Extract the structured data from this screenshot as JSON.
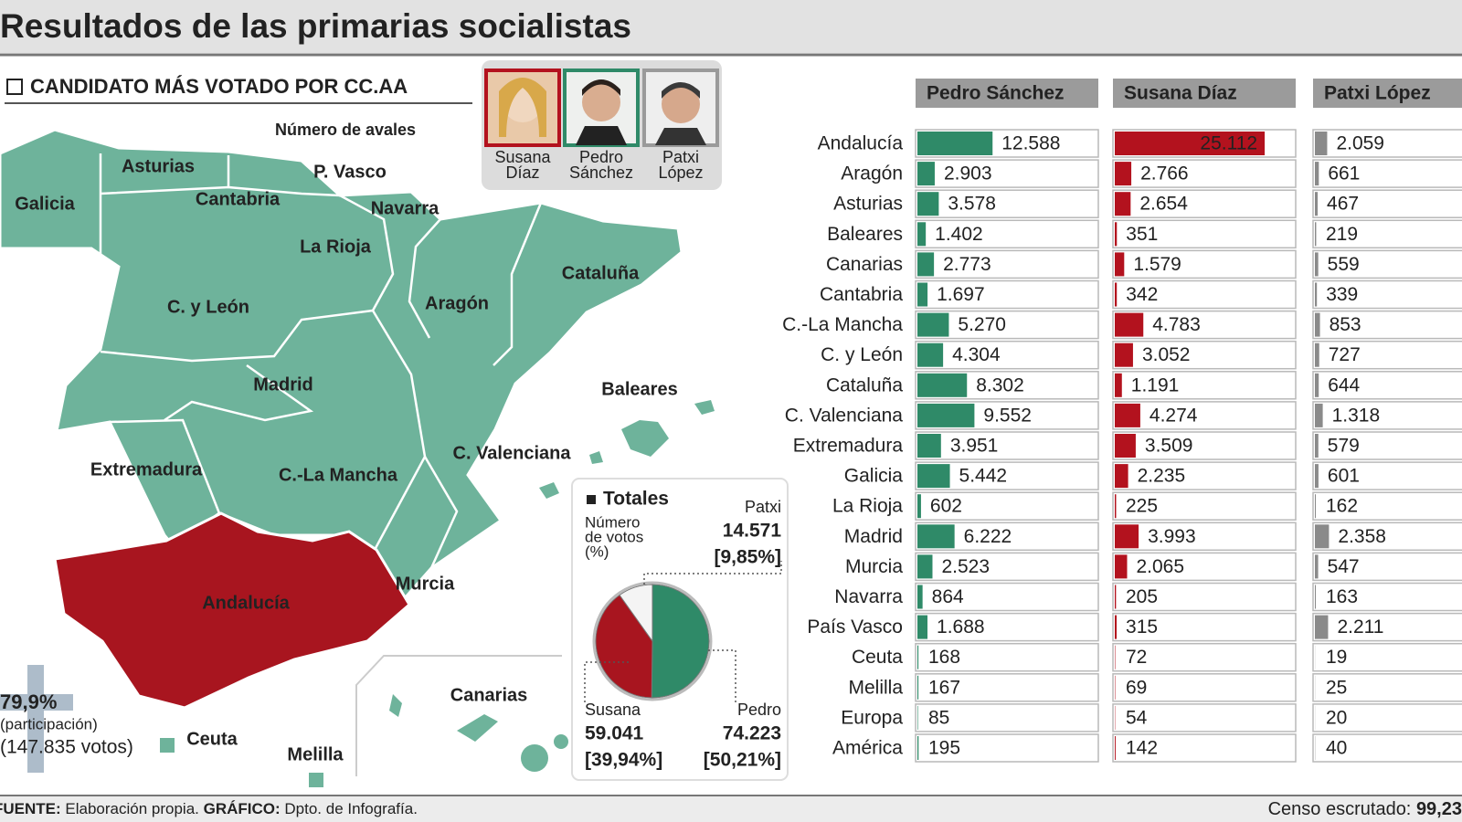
{
  "header": {
    "title": "Resultados de las primarias socialistas"
  },
  "map": {
    "legend_title": "CANDIDATO MÁS VOTADO POR CC.AA",
    "subtitle": "Número de avales",
    "candidates": [
      [
        "Susana",
        "Díaz"
      ],
      [
        "Pedro",
        "Sánchez"
      ],
      [
        "Patxi",
        "López"
      ]
    ],
    "labels": [
      "Asturias",
      "P. Vasco",
      "Galicia",
      "Cantabria",
      "Navarra",
      "La Rioja",
      "Cataluña",
      "Aragón",
      "C. y León",
      "Madrid",
      "Baleares",
      "C. Valenciana",
      "Extremadura",
      "C.-La Mancha",
      "Murcia",
      "Andalucía",
      "Canarias",
      "Ceuta",
      "Melilla"
    ],
    "participation": [
      "79,9%",
      "(participación)",
      "(147.835 votos)"
    ]
  },
  "chart_data": [
    {
      "type": "bar",
      "orientation": "horizontal",
      "categories": [
        "Andalucía",
        "Aragón",
        "Asturias",
        "Baleares",
        "Canarias",
        "Cantabria",
        "C.-La Mancha",
        "C. y León",
        "Cataluña",
        "C. Valenciana",
        "Extremadura",
        "Galicia",
        "La Rioja",
        "Madrid",
        "Murcia",
        "Navarra",
        "País Vasco",
        "Ceuta",
        "Melilla",
        "Europa",
        "América"
      ],
      "xlim": [
        0,
        30000
      ],
      "highlight_color": "#eddccd",
      "series": [
        {
          "name": "Pedro Sánchez",
          "color": "#2f8a68",
          "values": [
            12588,
            2903,
            3578,
            1402,
            2773,
            1697,
            5270,
            4304,
            8302,
            9552,
            3951,
            5442,
            602,
            6222,
            2523,
            864,
            1688,
            168,
            167,
            85,
            195
          ],
          "value_labels": [
            "12.588",
            "2.903",
            "3.578",
            "1.402",
            "2.773",
            "1.697",
            "5.270",
            "4.304",
            "8.302",
            "9.552",
            "3.951",
            "5.442",
            "602",
            "6.222",
            "2.523",
            "864",
            "1.688",
            "168",
            "167",
            "85",
            "195"
          ]
        },
        {
          "name": "Susana Díaz",
          "color": "#b3121e",
          "values": [
            25112,
            2766,
            2654,
            351,
            1579,
            342,
            4783,
            3052,
            1191,
            4274,
            3509,
            2235,
            225,
            3993,
            2065,
            205,
            315,
            72,
            69,
            54,
            142
          ],
          "value_labels": [
            "25.112",
            "2.766",
            "2.654",
            "351",
            "1.579",
            "342",
            "4.783",
            "3.052",
            "1.191",
            "4.274",
            "3.509",
            "2.235",
            "225",
            "3.993",
            "2.065",
            "205",
            "315",
            "72",
            "69",
            "54",
            "142"
          ]
        },
        {
          "name": "Patxi López",
          "color": "#8a8a8a",
          "values": [
            2059,
            661,
            467,
            219,
            559,
            339,
            853,
            727,
            644,
            1318,
            579,
            601,
            162,
            2358,
            547,
            163,
            2211,
            19,
            25,
            20,
            40
          ],
          "value_labels": [
            "2.059",
            "661",
            "467",
            "219",
            "559",
            "339",
            "853",
            "727",
            "644",
            "1.318",
            "579",
            "601",
            "162",
            "2.358",
            "547",
            "163",
            "2.211",
            "19",
            "25",
            "20",
            "40"
          ]
        }
      ]
    },
    {
      "type": "pie",
      "title": "Totales",
      "note": [
        "Número",
        "de votos",
        "(%)"
      ],
      "categories": [
        "Pedro",
        "Susana",
        "Patxi"
      ],
      "colors": [
        "#2f8a68",
        "#a8151f",
        "#f4f4f4"
      ],
      "values": [
        50.21,
        39.94,
        9.85
      ],
      "value_labels": [
        "[50,21%]",
        "[39,94%]",
        "[9,85%]"
      ],
      "votes": [
        74223,
        59041,
        14571
      ],
      "vote_labels": [
        "74.223",
        "59.041",
        "14.571"
      ]
    }
  ],
  "footer": {
    "source_label": "FUENTE:",
    "source": " Elaboración propia. ",
    "graphic_label": "GRÁFICO:",
    "graphic": " Dpto. de Infografía.",
    "census_label": "Censo escrutado: ",
    "census": "99,23"
  }
}
